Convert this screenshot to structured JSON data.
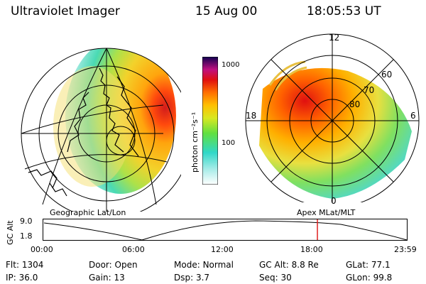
{
  "header": {
    "instrument": "Ultraviolet Imager",
    "date": "15 Aug 00",
    "time": "18:05:53 UT"
  },
  "left_panel": {
    "caption": "Geographic Lat/Lon"
  },
  "right_panel": {
    "caption": "Apex  MLat/MLT",
    "mlt_labels": {
      "top": "12",
      "left": "18",
      "right": "6",
      "bottom": "0"
    },
    "mlat_labels": [
      "60",
      "70",
      "80"
    ]
  },
  "colorbar": {
    "label": "photon cm⁻²s⁻¹",
    "ticks": [
      "1000",
      "100"
    ]
  },
  "altitude_plot": {
    "ylabel": "GC Alt",
    "ymax": "9.0",
    "ymin": "1.8",
    "time_ticks": [
      "00:00",
      "06:00",
      "12:00",
      "18:00",
      "23:59"
    ],
    "current_time_fraction": 0.754
  },
  "status": {
    "flt": {
      "label": "Flt:",
      "value": "1304"
    },
    "ip": {
      "label": "IP:",
      "value": "36.0"
    },
    "door": {
      "label": "Door:",
      "value": "Open"
    },
    "gain": {
      "label": "Gain:",
      "value": "13"
    },
    "mode": {
      "label": "Mode:",
      "value": "Normal"
    },
    "dsp": {
      "label": "Dsp:",
      "value": "3.7"
    },
    "gcalt": {
      "label": "GC Alt:",
      "value": "8.8 Re"
    },
    "seq": {
      "label": "Seq:",
      "value": "30"
    },
    "glat": {
      "label": "GLat:",
      "value": "77.1"
    },
    "glon": {
      "label": "GLon:",
      "value": "99.8"
    }
  }
}
